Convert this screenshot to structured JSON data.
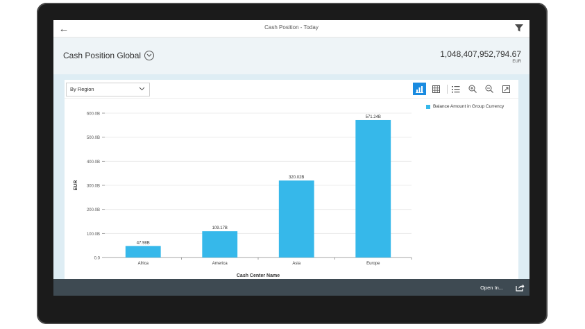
{
  "shell": {
    "title": "Cash Position - Today",
    "back_icon": "back-arrow-icon",
    "filter_icon": "filter-icon"
  },
  "header": {
    "title": "Cash Position Global",
    "kpi_value": "1,048,407,952,794.67",
    "kpi_unit": "EUR"
  },
  "toolbar": {
    "select_value": "By Region",
    "icons": [
      "bar-chart-icon",
      "table-icon",
      "legend-list-icon",
      "zoom-in-icon",
      "zoom-out-icon",
      "fullscreen-icon"
    ],
    "accent": "#1a8be0"
  },
  "chart_data": {
    "type": "bar",
    "categories": [
      "Africa",
      "America",
      "Asia",
      "Europe"
    ],
    "series": [
      {
        "name": "Balance Amount in Group Currency",
        "values": [
          47.98,
          109.17,
          320.02,
          571.24
        ],
        "labels": [
          "47.98B",
          "109.17B",
          "320.02B",
          "571.24B"
        ],
        "color": "#36b8ea"
      }
    ],
    "xlabel": "Cash Center Name",
    "ylabel": "EUR",
    "ylim": [
      0,
      600
    ],
    "yticks": [
      0,
      100,
      200,
      300,
      400,
      500,
      600
    ],
    "ytick_labels": [
      "0.0",
      "100.0B",
      "200.0B",
      "300.0B",
      "400.0B",
      "500.0B",
      "600.0B"
    ],
    "grid": true,
    "legend_position": "top-right"
  },
  "footer": {
    "open_in_label": "Open In...",
    "share_icon": "share-icon"
  }
}
